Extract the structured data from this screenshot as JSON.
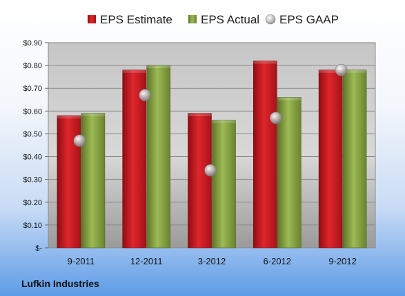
{
  "chart_data": {
    "type": "bar",
    "title": "",
    "xlabel": "",
    "ylabel": "",
    "footer": "Lufkin Industries",
    "categories": [
      "9-2011",
      "12-2011",
      "3-2012",
      "6-2012",
      "9-2012"
    ],
    "series": [
      {
        "name": "EPS Estimate",
        "type": "bar",
        "color": "#c8161d",
        "values": [
          0.58,
          0.78,
          0.59,
          0.82,
          0.78
        ]
      },
      {
        "name": "EPS Actual",
        "type": "bar",
        "color": "#7f9a3b",
        "values": [
          0.59,
          0.8,
          0.56,
          0.66,
          0.78
        ]
      },
      {
        "name": "EPS GAAP",
        "type": "scatter",
        "color": "#b0b0b0",
        "values": [
          0.47,
          0.67,
          0.34,
          0.57,
          0.78
        ]
      }
    ],
    "ylim": [
      0,
      0.9
    ],
    "yticks": [
      0,
      0.1,
      0.2,
      0.3,
      0.4,
      0.5,
      0.6,
      0.7,
      0.8,
      0.9
    ],
    "ytick_labels": [
      "$-",
      "$0.10",
      "$0.20",
      "$0.30",
      "$0.40",
      "$0.50",
      "$0.60",
      "$0.70",
      "$0.80",
      "$0.90"
    ],
    "grid": true,
    "legend_position": "top"
  }
}
